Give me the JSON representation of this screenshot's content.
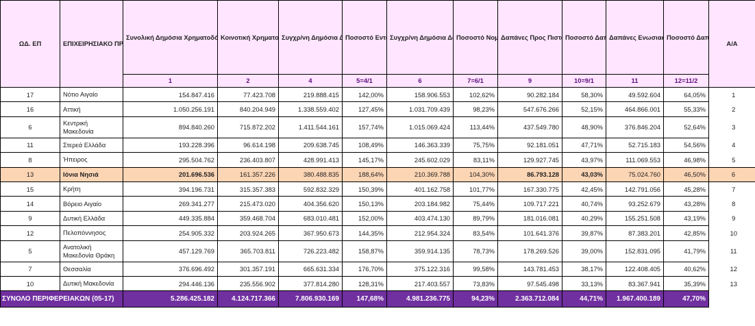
{
  "headers": {
    "code": "ΩΔ. ΕΠ",
    "program": "ΕΠΙΧΕΙΡΗΣΙΑΚΟ ΠΡΟΓΡΑΜΜΑ",
    "c1": "Συνολική Δημόσια Χρηματοδότηση (€)",
    "c2": "Κοινοτική Χρηματοδότηση (€)",
    "c4": "Συγχρ/νη Δημόσια Δαπάνη Ενταγμένων Έργων (€)",
    "c5": "Ποσοστό Ενταγμένων Έργων (%)",
    "c6": "Συγχρ/νη Δημόσια Δαπάνη Νομικών Δεσμεύσεων (€)",
    "c7": "Ποσοστό Νομικών Δεσμεύσεων (%)",
    "c9": "Δαπάνες Προς Πιστοποίηση Σύνολο Λογιστ. Χρήσεων (Συγχρ/νη ΔΔ) (€)",
    "c10": "Ποσοστό Δαπανών Προς Πιστοποίηση Σύνολο Λογιστ. Χρήσεων(%)",
    "c11": "Δαπάνες Ενωσιακής Στήριξης (€)",
    "c12": "Ποσοστό Δαπανών Ενωσιακής Στήριξης (%)",
    "aa": "Α/Α"
  },
  "subheaders": {
    "c1": "1",
    "c2": "2",
    "c4": "4",
    "c5": "5=4/1",
    "c6": "6",
    "c7": "7=6/1",
    "c9": "9",
    "c10": "10=9/1",
    "c11": "11",
    "c12": "12=11/2"
  },
  "rows": [
    {
      "code": "17",
      "name": "Νότιο Αιγαίο",
      "c1": "154.847.416",
      "c2": "77.423.708",
      "c4": "219.888.415",
      "c5": "142,00%",
      "c6": "158.906.553",
      "c7": "102,62%",
      "c9": "90.282.184",
      "c10": "58,30%",
      "c11": "49.592.604",
      "c12": "64,05%",
      "aa": "1"
    },
    {
      "code": "16",
      "name": "Αττική",
      "c1": "1.050.256.191",
      "c2": "840.204.949",
      "c4": "1.338.559.402",
      "c5": "127,45%",
      "c6": "1.031.709.439",
      "c7": "98,23%",
      "c9": "547.676.266",
      "c10": "52,15%",
      "c11": "464.866.001",
      "c12": "55,33%",
      "aa": "2"
    },
    {
      "code": "6",
      "name": "Κεντρική Μακεδονία",
      "c1": "894.840.260",
      "c2": "715.872.202",
      "c4": "1.411.544.161",
      "c5": "157,74%",
      "c6": "1.015.069.424",
      "c7": "113,44%",
      "c9": "437.549.780",
      "c10": "48,90%",
      "c11": "376.846.204",
      "c12": "52,64%",
      "aa": "3"
    },
    {
      "code": "11",
      "name": "Στερεά Ελλάδα",
      "c1": "193.228.396",
      "c2": "96.614.198",
      "c4": "209.638.745",
      "c5": "108,49%",
      "c6": "146.363.339",
      "c7": "75,75%",
      "c9": "92.181.051",
      "c10": "47,71%",
      "c11": "52.715.183",
      "c12": "54,56%",
      "aa": "4"
    },
    {
      "code": "8",
      "name": "Ήπειρος",
      "c1": "295.504.762",
      "c2": "236.403.807",
      "c4": "428.991.413",
      "c5": "145,17%",
      "c6": "245.602.029",
      "c7": "83,11%",
      "c9": "129.927.745",
      "c10": "43,97%",
      "c11": "111.069.553",
      "c12": "46,98%",
      "aa": "5"
    },
    {
      "code": "13",
      "name": "Ιόνια Νησιά",
      "c1": "201.696.536",
      "c2": "161.357.226",
      "c4": "380.488.835",
      "c5": "188,64%",
      "c6": "210.369.788",
      "c7": "104,30%",
      "c9": "86.793.128",
      "c10": "43,03%",
      "c11": "75.024.760",
      "c12": "46,50%",
      "aa": "6"
    },
    {
      "code": "15",
      "name": "Κρήτη",
      "c1": "394.196.731",
      "c2": "315.357.383",
      "c4": "592.832.329",
      "c5": "150,39%",
      "c6": "401.162.758",
      "c7": "101,77%",
      "c9": "167.330.775",
      "c10": "42,45%",
      "c11": "142.791.056",
      "c12": "45,28%",
      "aa": "7"
    },
    {
      "code": "14",
      "name": "Βόρειο Αιγαίο",
      "c1": "269.341.277",
      "c2": "215.473.020",
      "c4": "404.356.620",
      "c5": "150,13%",
      "c6": "203.184.982",
      "c7": "75,44%",
      "c9": "109.717.221",
      "c10": "40,74%",
      "c11": "93.252.679",
      "c12": "43,28%",
      "aa": "8"
    },
    {
      "code": "9",
      "name": "Δυτική Ελλάδα",
      "c1": "449.335.884",
      "c2": "359.468.704",
      "c4": "683.010.481",
      "c5": "152,00%",
      "c6": "403.474.130",
      "c7": "89,79%",
      "c9": "181.016.081",
      "c10": "40,29%",
      "c11": "155.251.508",
      "c12": "43,19%",
      "aa": "9"
    },
    {
      "code": "12",
      "name": "Πελοπόννησος",
      "c1": "254.905.332",
      "c2": "203.924.265",
      "c4": "367.950.673",
      "c5": "144,35%",
      "c6": "212.954.324",
      "c7": "83,54%",
      "c9": "101.641.376",
      "c10": "39,87%",
      "c11": "87.383.201",
      "c12": "42,85%",
      "aa": "10"
    },
    {
      "code": "5",
      "name": "Ανατολική Μακεδονία Θράκη",
      "c1": "457.129.769",
      "c2": "365.703.811",
      "c4": "726.223.482",
      "c5": "158,87%",
      "c6": "359.914.135",
      "c7": "78,73%",
      "c9": "178.269.526",
      "c10": "39,00%",
      "c11": "152.831.095",
      "c12": "41,79%",
      "aa": "11"
    },
    {
      "code": "7",
      "name": "Θεσσαλία",
      "c1": "376.696.492",
      "c2": "301.357.191",
      "c4": "665.631.334",
      "c5": "176,70%",
      "c6": "375.122.316",
      "c7": "99,58%",
      "c9": "143.781.453",
      "c10": "38,17%",
      "c11": "122.408.405",
      "c12": "40,62%",
      "aa": "12"
    },
    {
      "code": "10",
      "name": "Δυτική Μακεδονία",
      "c1": "294.446.136",
      "c2": "235.556.902",
      "c4": "377.814.280",
      "c5": "128,31%",
      "c6": "217.403.557",
      "c7": "73,83%",
      "c9": "97.545.498",
      "c10": "33,13%",
      "c11": "83.367.941",
      "c12": "35,39%",
      "aa": "13"
    }
  ],
  "total": {
    "label": "ΣΥΝΟΛΟ ΠΕΡΙΦΕΡΕΙΑΚΩΝ (05-17)",
    "c1": "5.286.425.182",
    "c2": "4.124.717.366",
    "c4": "7.806.930.169",
    "c5": "147,68%",
    "c6": "4.981.236.775",
    "c7": "94,23%",
    "c9": "2.363.712.084",
    "c10": "44,71%",
    "c11": "1.967.400.189",
    "c12": "47,70%"
  },
  "colors": {
    "header_bg": "#ffe5ff",
    "header_text": "#5b0f7d",
    "highlight": "#fcd5b4",
    "total_bg": "#7030a0"
  }
}
